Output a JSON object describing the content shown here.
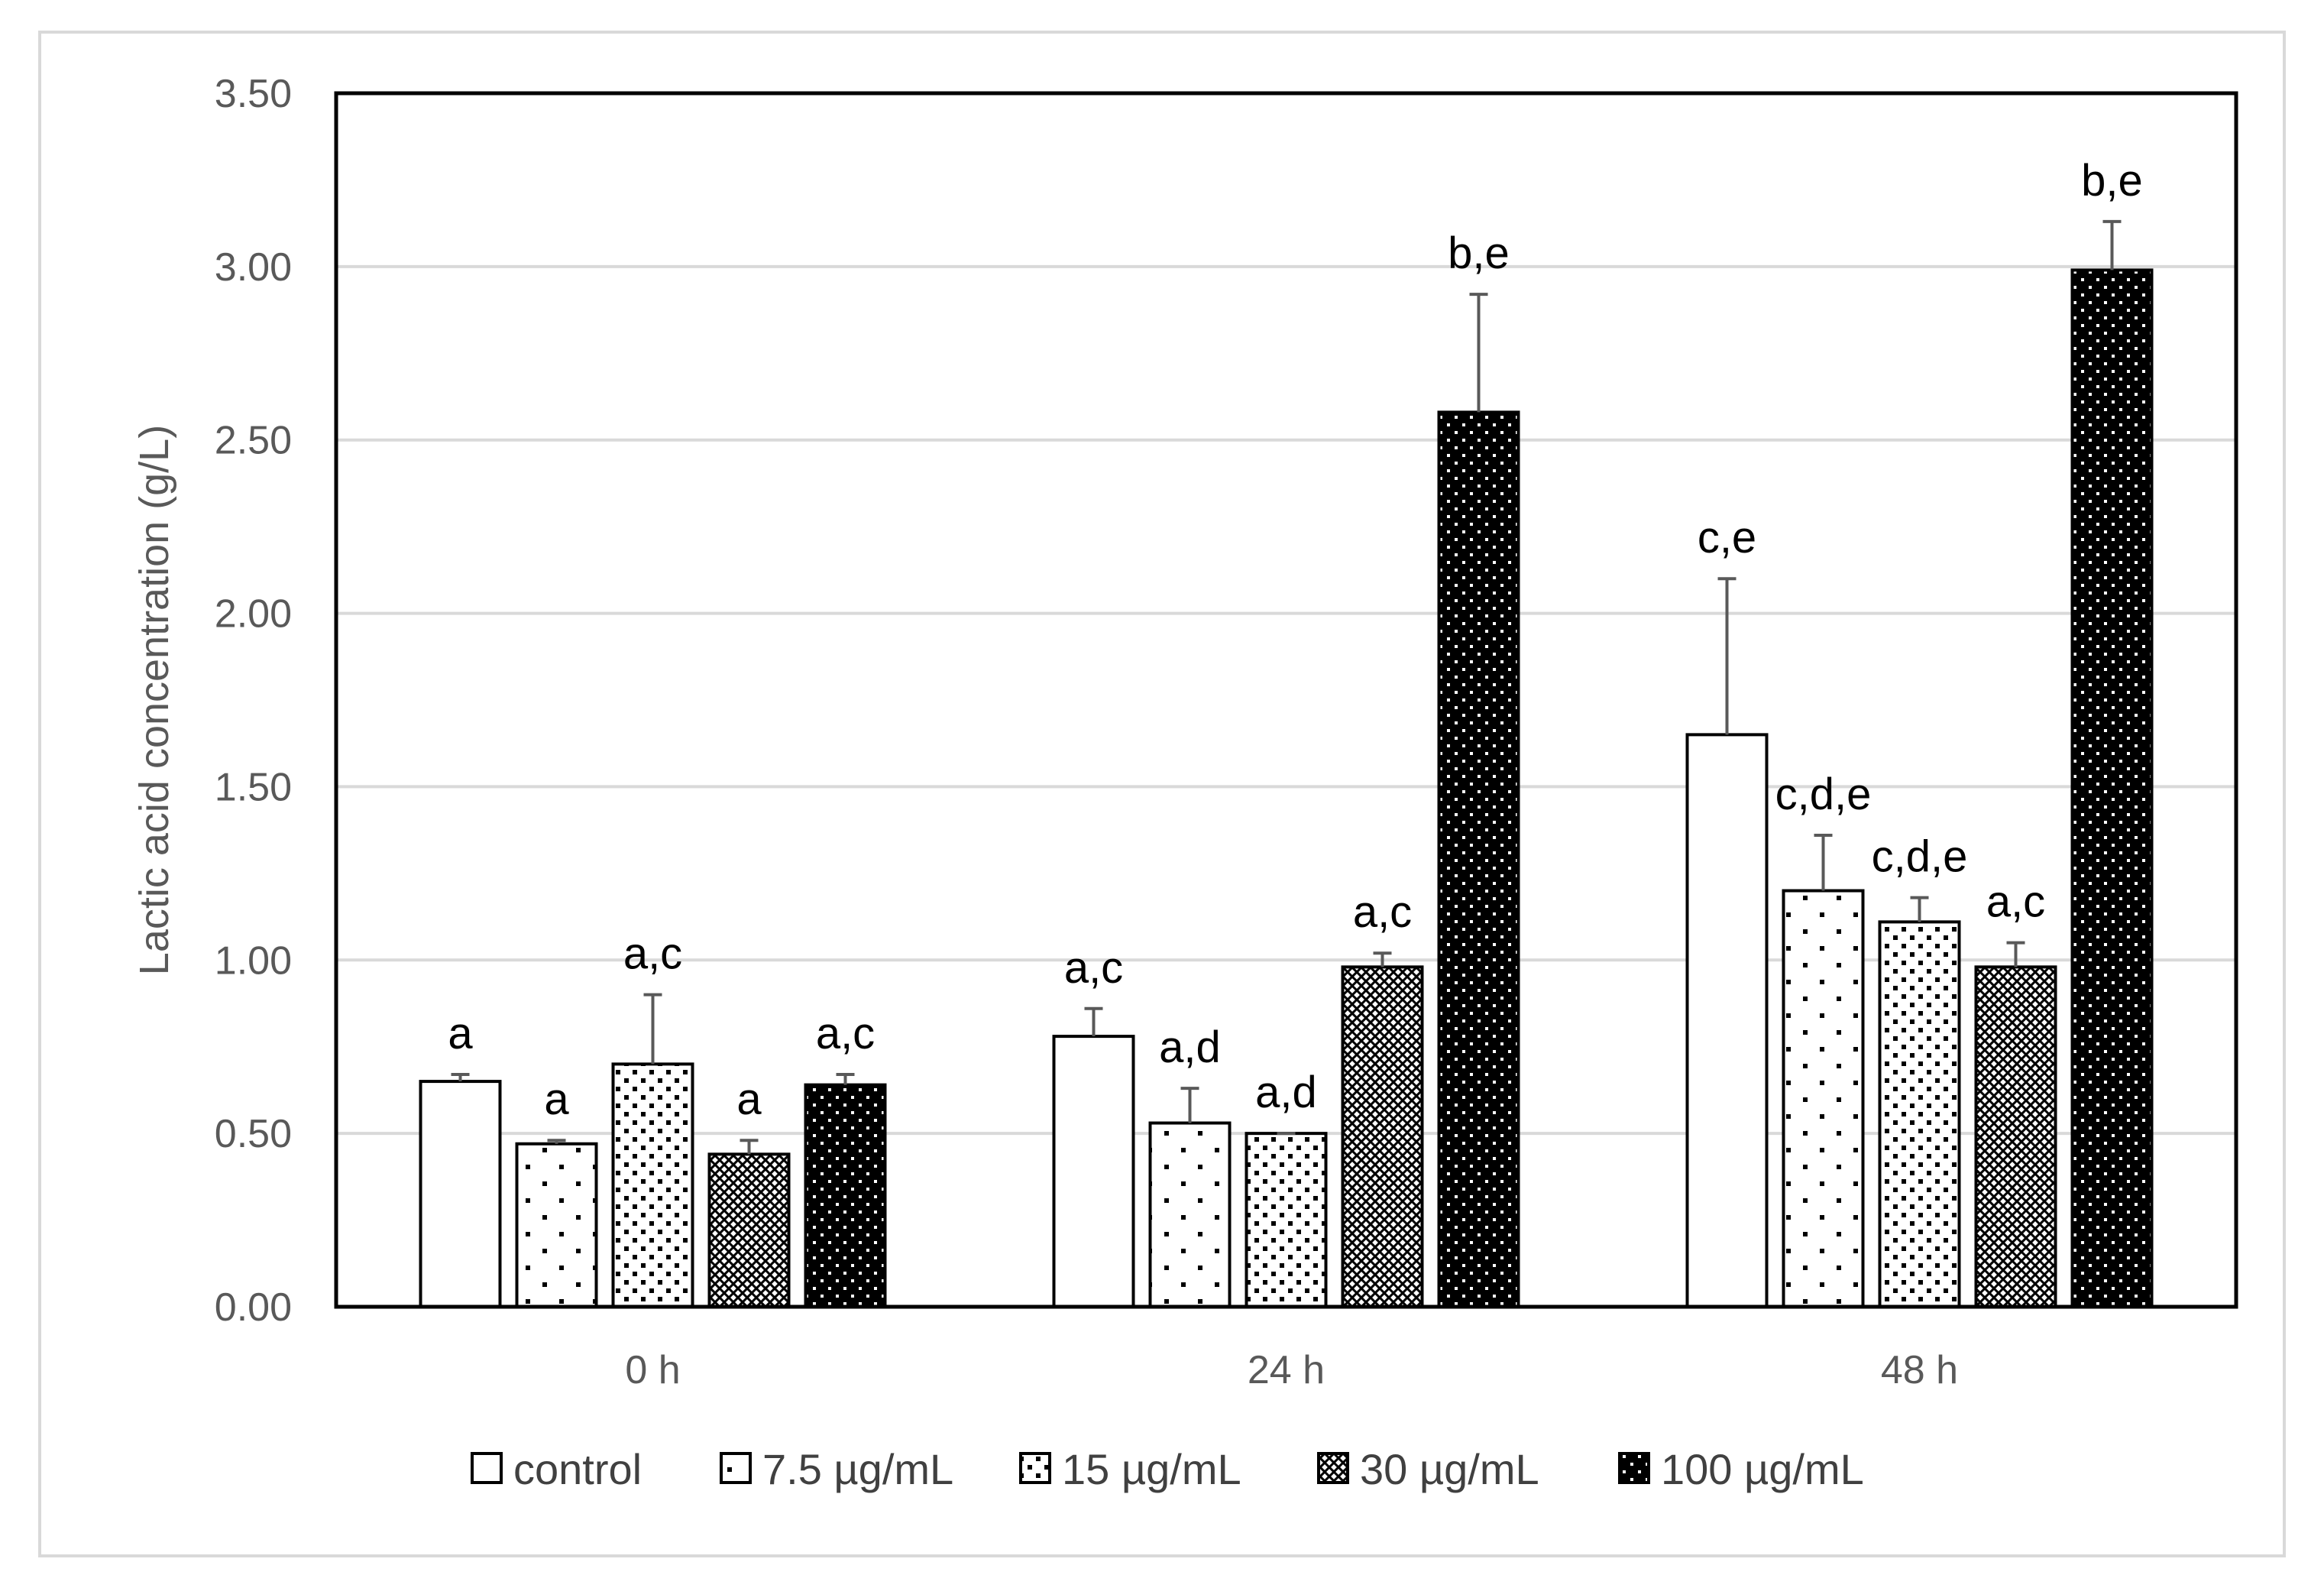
{
  "chart_data": {
    "type": "bar",
    "title": "",
    "xlabel": "",
    "ylabel": "Lactic acid concentration (g/L)",
    "ylim": [
      0,
      3.5
    ],
    "yticks": [
      "0.00",
      "0.50",
      "1.00",
      "1.50",
      "2.00",
      "2.50",
      "3.00",
      "3.50"
    ],
    "ytick_values": [
      0,
      0.5,
      1.0,
      1.5,
      2.0,
      2.5,
      3.0,
      3.5
    ],
    "grid": true,
    "legend_position": "bottom",
    "categories": [
      "0 h",
      "24 h",
      "48 h"
    ],
    "series": [
      {
        "name": "control",
        "pattern": "none",
        "values": [
          0.65,
          0.78,
          1.65
        ],
        "errors": [
          0.02,
          0.08,
          0.45
        ],
        "labels": [
          "a",
          "a,c",
          "c,e"
        ]
      },
      {
        "name": "7.5 µg/mL",
        "pattern": "sparse-dots",
        "values": [
          0.47,
          0.53,
          1.2
        ],
        "errors": [
          0.01,
          0.1,
          0.16
        ],
        "labels": [
          "a",
          "a,d",
          "c,d,e"
        ]
      },
      {
        "name": "15 µg/mL",
        "pattern": "dots",
        "values": [
          0.7,
          0.5,
          1.11
        ],
        "errors": [
          0.2,
          0.0,
          0.07
        ],
        "labels": [
          "a,c",
          "a,d",
          "c,d,e"
        ]
      },
      {
        "name": "30 µg/mL",
        "pattern": "crosshatch",
        "values": [
          0.44,
          0.98,
          0.98
        ],
        "errors": [
          0.04,
          0.04,
          0.07
        ],
        "labels": [
          "a",
          "a,c",
          "a,c"
        ]
      },
      {
        "name": "100 µg/mL",
        "pattern": "dense-black",
        "values": [
          0.64,
          2.58,
          2.99
        ],
        "errors": [
          0.03,
          0.34,
          0.14
        ],
        "labels": [
          "a,c",
          "b,e",
          "b,e"
        ]
      }
    ]
  }
}
